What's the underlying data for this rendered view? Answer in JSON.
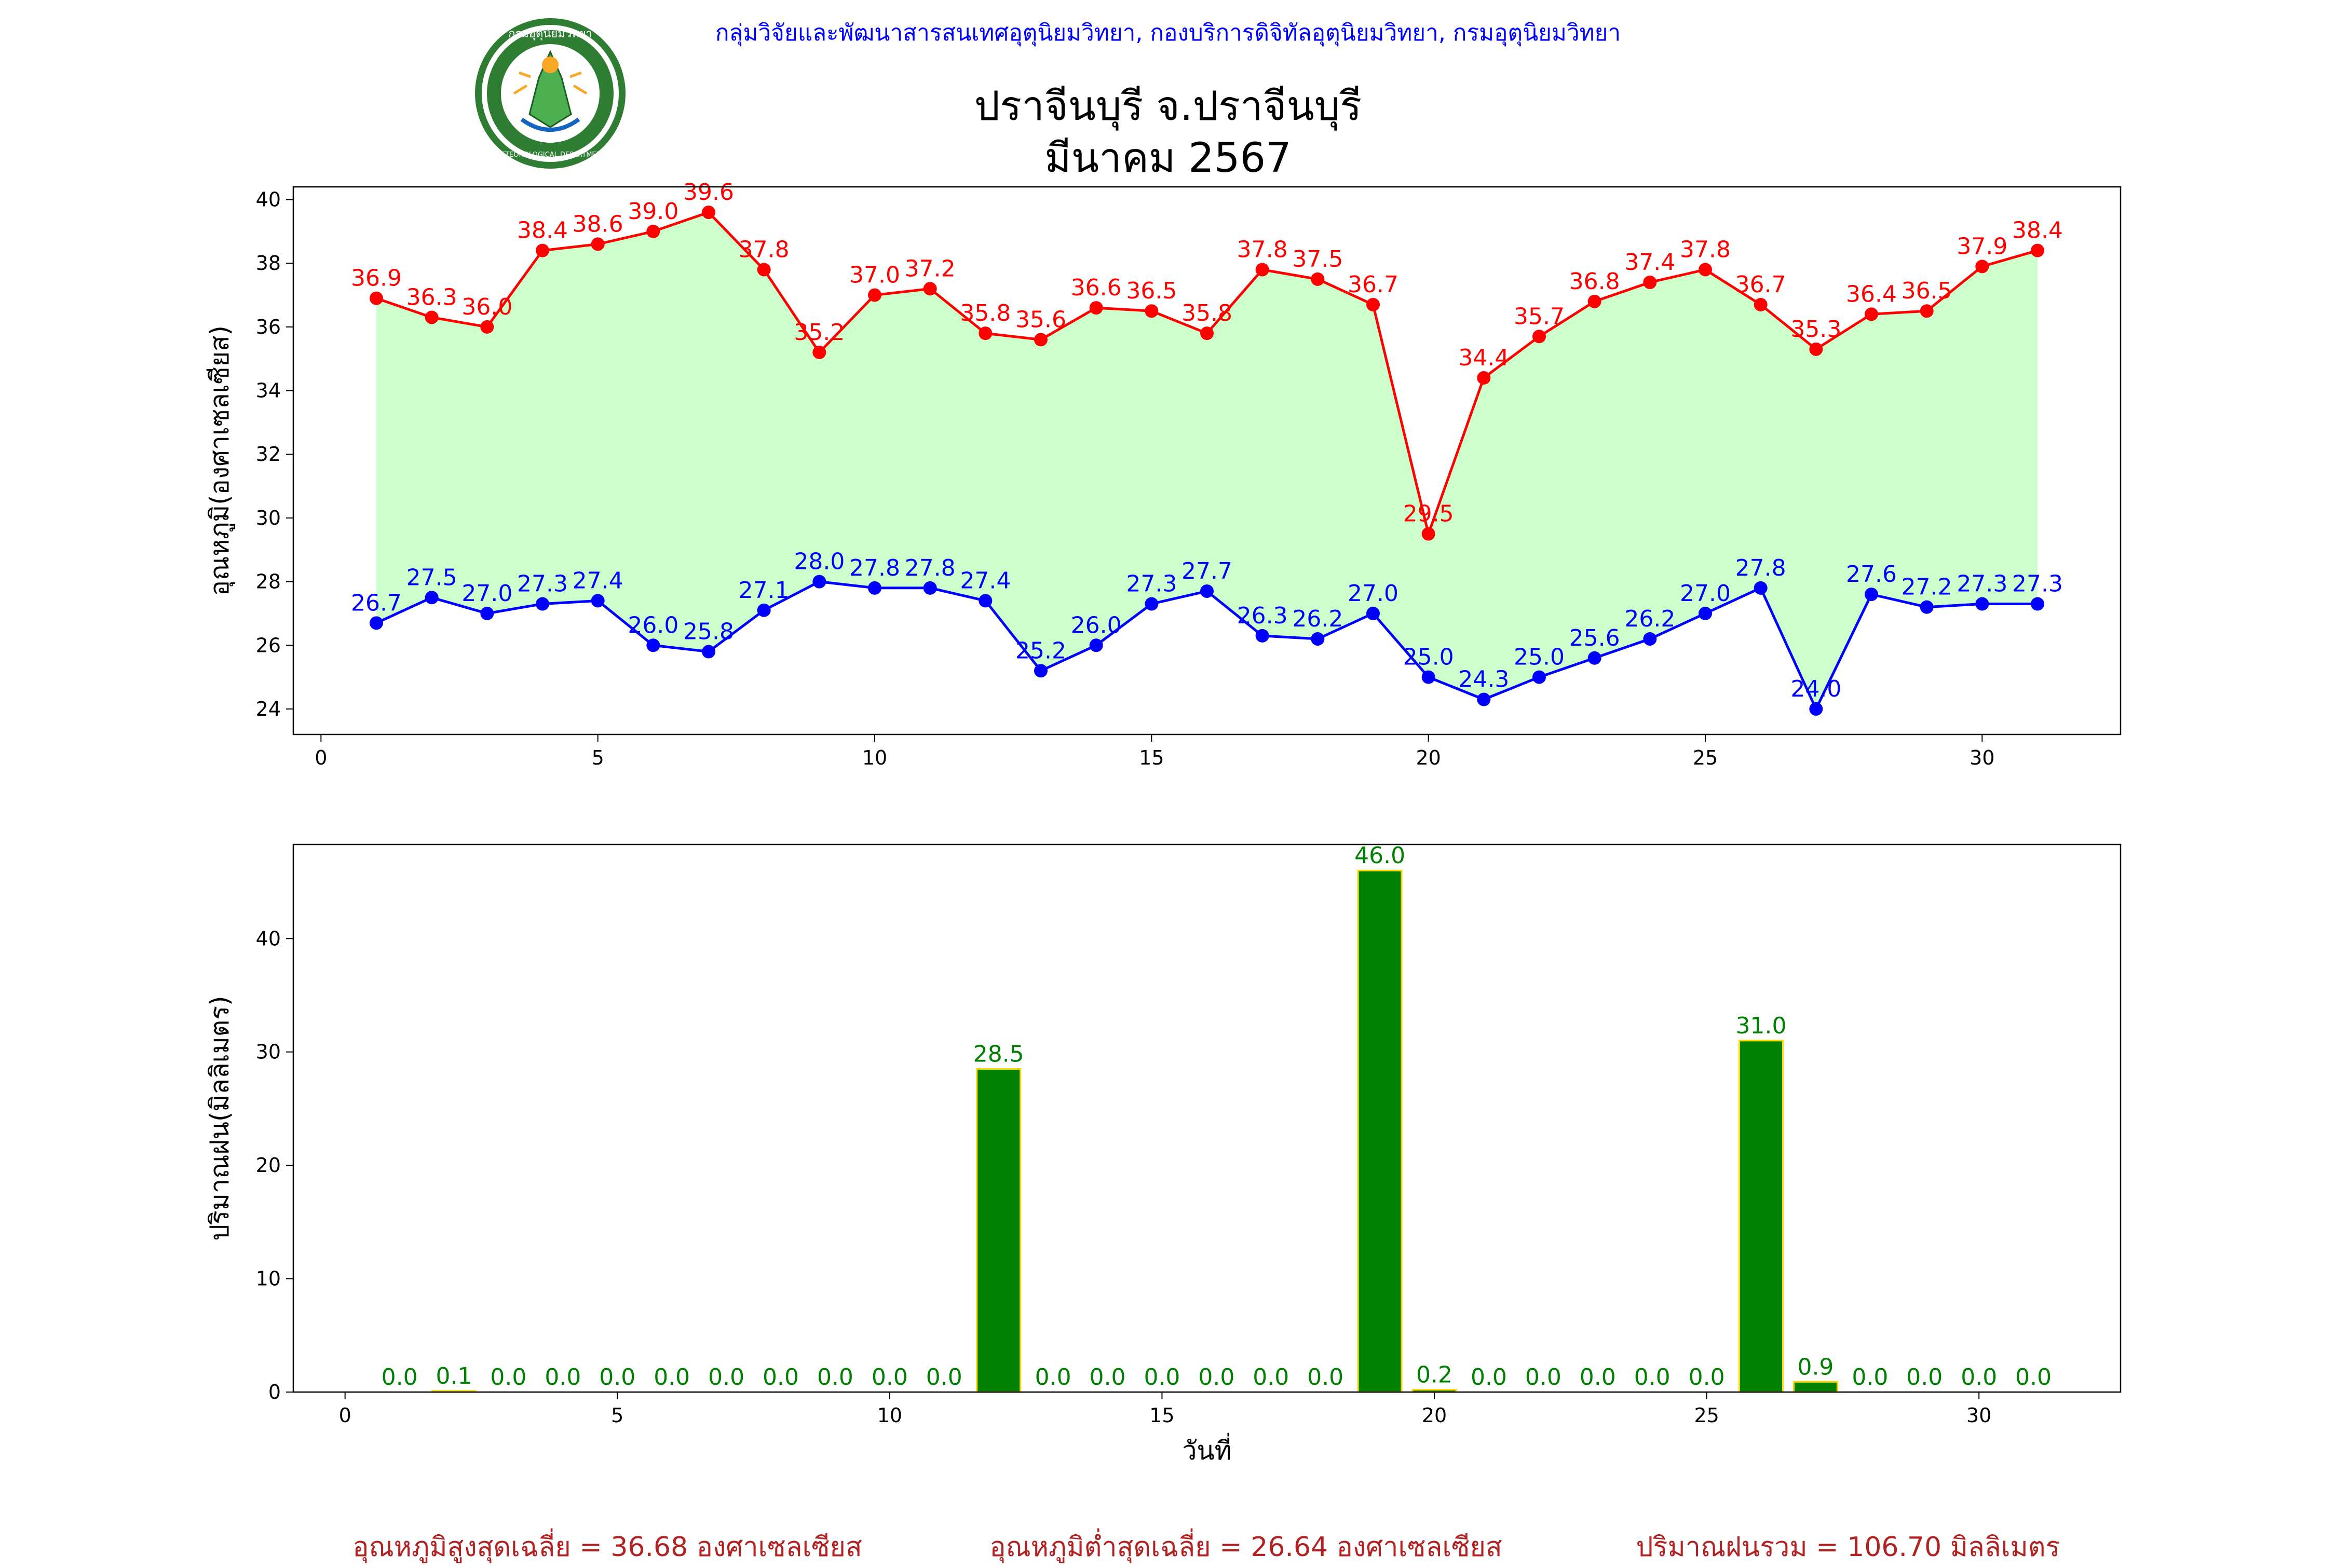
{
  "header": {
    "org_credit": "กลุ่มวิจัยและพัฒนาสารสนเทศอุตุนิยมวิทยา, กองบริการดิจิทัลอุตุนิยมวิทยา, กรมอุตุนิยมวิทยา",
    "title_line1": "ปราจีนบุรี จ.ปราจีนบุรี",
    "title_line2": "มีนาคม 2567",
    "logo_top_text": "กรมอุตุนิยมวิทยา",
    "logo_bottom_text": "METEOROLOGICAL DEPARTMENT"
  },
  "colors": {
    "max_line": "#ff0000",
    "min_line": "#0000ff",
    "fill_between": "#ccffcc",
    "bar_fill": "#008000",
    "bar_edge": "#ffd700",
    "bar_label": "#008000",
    "footer_text": "#b22222"
  },
  "chart_data": [
    {
      "type": "line",
      "title": "",
      "xlabel": "",
      "ylabel": "อุณหภูมิ(องศาเซลเซียส)",
      "x": [
        1,
        2,
        3,
        4,
        5,
        6,
        7,
        8,
        9,
        10,
        11,
        12,
        13,
        14,
        15,
        16,
        17,
        18,
        19,
        20,
        21,
        22,
        23,
        24,
        25,
        26,
        27,
        28,
        29,
        30,
        31
      ],
      "xlim": [
        -0.5,
        32.5
      ],
      "ylim": [
        23.2,
        40.4
      ],
      "xticks": [
        0,
        5,
        10,
        15,
        20,
        25,
        30
      ],
      "yticks": [
        24,
        26,
        28,
        30,
        32,
        34,
        36,
        38,
        40
      ],
      "fill_between": true,
      "series": [
        {
          "color": "#ff0000",
          "values": [
            36.9,
            36.3,
            36.0,
            38.4,
            38.6,
            39.0,
            39.6,
            37.8,
            35.2,
            37.0,
            37.2,
            35.8,
            35.6,
            36.6,
            36.5,
            35.8,
            37.8,
            37.5,
            36.7,
            29.5,
            34.4,
            35.7,
            36.8,
            37.4,
            37.8,
            36.7,
            35.3,
            36.4,
            36.5,
            37.9,
            38.4
          ]
        },
        {
          "color": "#0000ff",
          "values": [
            26.7,
            27.5,
            27.0,
            27.3,
            27.4,
            26.0,
            25.8,
            27.1,
            28.0,
            27.8,
            27.8,
            27.4,
            25.2,
            26.0,
            27.3,
            27.7,
            26.3,
            26.2,
            27.0,
            25.0,
            24.3,
            25.0,
            25.6,
            26.2,
            27.0,
            27.8,
            24.0,
            27.6,
            27.2,
            27.3,
            27.3
          ]
        }
      ]
    },
    {
      "type": "bar",
      "title": "",
      "xlabel": "วันที่",
      "ylabel": "ปริมาณฝน(มิลลิเมตร)",
      "categories": [
        1,
        2,
        3,
        4,
        5,
        6,
        7,
        8,
        9,
        10,
        11,
        12,
        13,
        14,
        15,
        16,
        17,
        18,
        19,
        20,
        21,
        22,
        23,
        24,
        25,
        26,
        27,
        28,
        29,
        30,
        31
      ],
      "values": [
        0.0,
        0.1,
        0.0,
        0.0,
        0.0,
        0.0,
        0.0,
        0.0,
        0.0,
        0.0,
        0.0,
        28.5,
        0.0,
        0.0,
        0.0,
        0.0,
        0.0,
        0.0,
        46.0,
        0.2,
        0.0,
        0.0,
        0.0,
        0.0,
        0.0,
        31.0,
        0.9,
        0.0,
        0.0,
        0.0,
        0.0
      ],
      "xlim": [
        -0.95,
        32.6
      ],
      "ylim": [
        0,
        48.3
      ],
      "xticks": [
        0,
        5,
        10,
        15,
        20,
        25,
        30
      ],
      "yticks": [
        0,
        10,
        20,
        30,
        40
      ]
    }
  ],
  "footer": {
    "avg_max": "อุณหภูมิสูงสุดเฉลี่ย = 36.68 องศาเซลเซียส",
    "avg_min": "อุณหภูมิต่ำสุดเฉลี่ย = 26.64 องศาเซลเซียส",
    "total_rain": "ปริมาณฝนรวม = 106.70 มิลลิเมตร"
  }
}
